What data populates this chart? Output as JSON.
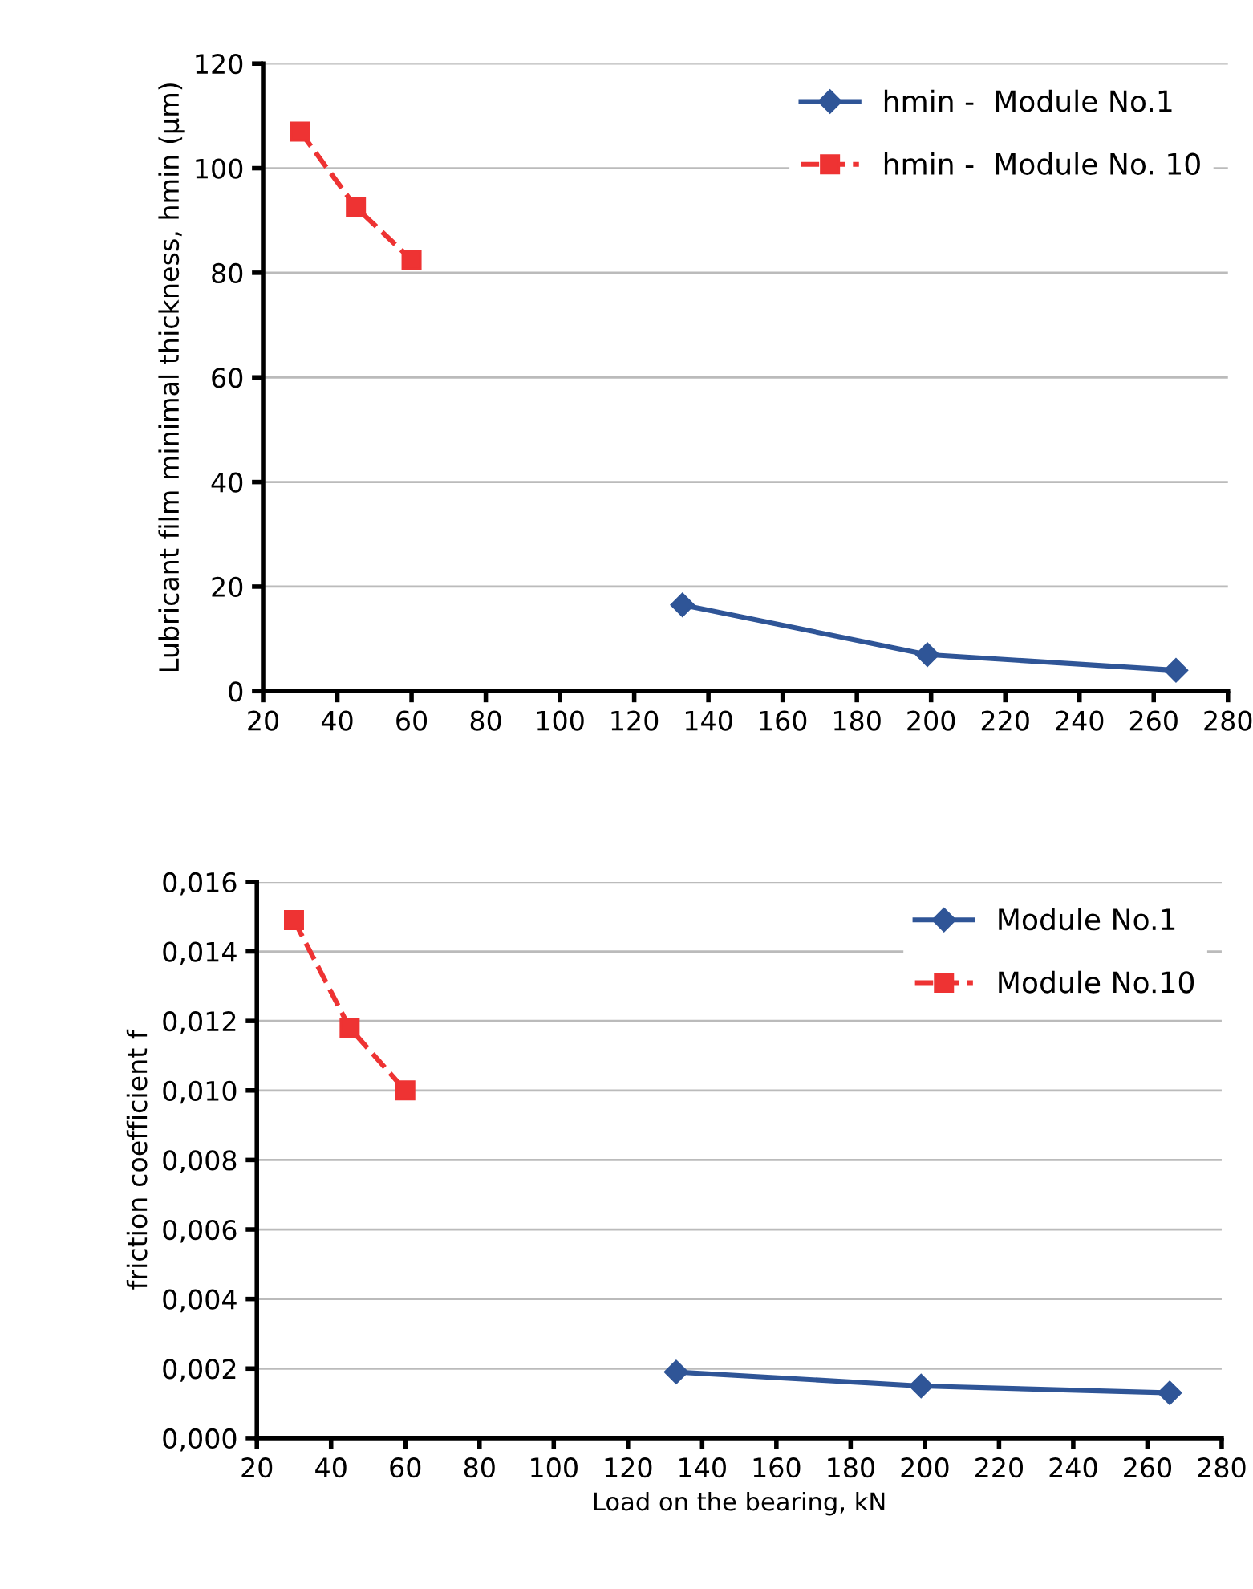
{
  "chart_data": [
    {
      "type": "line",
      "ylabel": "Lubricant film minimal thickness, hmin (µm)",
      "series": [
        {
          "name": "hmin -  Module No.1",
          "color": "#2f5597",
          "x": [
            133,
            199,
            266
          ],
          "values": [
            16.5,
            7,
            4
          ],
          "marker": "diamond",
          "line_style": "solid"
        },
        {
          "name": "hmin -  Module No. 10",
          "color": "#ee3333",
          "x": [
            30,
            45,
            60
          ],
          "values": [
            107,
            92.5,
            82.5
          ],
          "marker": "square",
          "line_style": "dashed"
        }
      ],
      "xlim": [
        20,
        280
      ],
      "xticks": [
        20,
        40,
        60,
        80,
        100,
        120,
        140,
        160,
        180,
        200,
        220,
        240,
        260,
        280
      ],
      "ylim": [
        0,
        120
      ],
      "yticks": [
        0,
        20,
        40,
        60,
        80,
        100,
        120
      ],
      "grid": "y",
      "legend": "top right"
    },
    {
      "type": "line",
      "xlabel": "Load on the bearing, kN",
      "ylabel": "friction coefficient f",
      "series": [
        {
          "name": "Module No.1",
          "color": "#2f5597",
          "x": [
            133,
            199,
            266
          ],
          "values": [
            0.0019,
            0.0015,
            0.0013
          ],
          "marker": "diamond",
          "line_style": "solid"
        },
        {
          "name": "Module No.10",
          "color": "#ee3333",
          "x": [
            30,
            45,
            60
          ],
          "values": [
            0.0149,
            0.0118,
            0.01
          ],
          "marker": "square",
          "line_style": "dashed"
        }
      ],
      "xlim": [
        20,
        280
      ],
      "xticks": [
        20,
        40,
        60,
        80,
        100,
        120,
        140,
        160,
        180,
        200,
        220,
        240,
        260,
        280
      ],
      "ylim": [
        0,
        0.016
      ],
      "yticks": [
        {
          "value": 0,
          "label": "0,000"
        },
        {
          "value": 0.002,
          "label": "0,002"
        },
        {
          "value": 0.004,
          "label": "0,004"
        },
        {
          "value": 0.006,
          "label": "0,006"
        },
        {
          "value": 0.008,
          "label": "0,008"
        },
        {
          "value": 0.01,
          "label": "0,010"
        },
        {
          "value": 0.012,
          "label": "0,012"
        },
        {
          "value": 0.014,
          "label": "0,014"
        },
        {
          "value": 0.016,
          "label": "0,016"
        }
      ],
      "grid": "y",
      "legend": "top right"
    }
  ]
}
